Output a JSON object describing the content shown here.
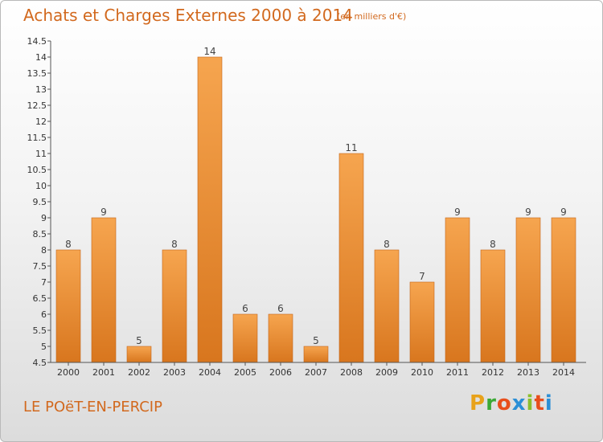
{
  "header": {
    "title": "Achats et Charges Externes 2000 à 2014",
    "unit": "(en milliers d'€)"
  },
  "footer": {
    "location": "LE POëT-EN-PERCIP",
    "brand": "Proxiti",
    "brand_colors": [
      "#e8a21a",
      "#3aa935",
      "#e84e1b",
      "#2b8fd6",
      "#8bbf2b",
      "#e84e1b",
      "#2b8fd6"
    ]
  },
  "colors": {
    "bar_top": "#f6a54f",
    "bar_bottom": "#d8761e",
    "bar_edge": "#c4651a",
    "text_accent": "#d2691e"
  },
  "chart_data": {
    "type": "bar",
    "categories": [
      "2000",
      "2001",
      "2002",
      "2003",
      "2004",
      "2005",
      "2006",
      "2007",
      "2008",
      "2009",
      "2010",
      "2011",
      "2012",
      "2013",
      "2014"
    ],
    "values": [
      8,
      9,
      5,
      8,
      14,
      6,
      6,
      5,
      11,
      8,
      7,
      9,
      8,
      9,
      9
    ],
    "data_labels": [
      "8",
      "9",
      "5",
      "8",
      "14",
      "6",
      "6",
      "5",
      "11",
      "8",
      "7",
      "9",
      "8",
      "9",
      "9"
    ],
    "title": "Achats et Charges Externes 2000 à 2014",
    "xlabel": "",
    "ylabel": "",
    "ylim": [
      4.5,
      14.5
    ],
    "yticks": [
      "4.5",
      "5",
      "5.5",
      "6",
      "6.5",
      "7",
      "7.5",
      "8",
      "8.5",
      "9",
      "9.5",
      "10",
      "10.5",
      "11",
      "11.5",
      "12",
      "12.5",
      "13",
      "13.5",
      "14",
      "14.5"
    ],
    "grid": false
  }
}
